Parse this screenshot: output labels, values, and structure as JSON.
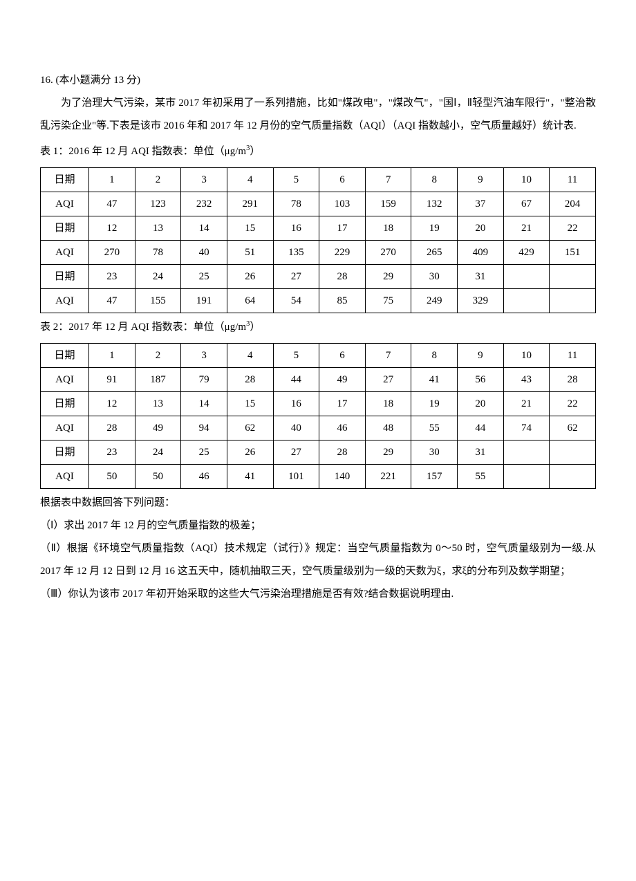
{
  "question_number": "16. (本小题满分 13 分)",
  "prose": {
    "p1": "为了治理大气污染，某市 2017 年初采用了一系列措施，比如\"煤改电\"，\"煤改气\"，\"国Ⅰ，Ⅱ轻型汽油车限行\"，\"整治散乱污染企业\"等.下表是该市 2016 年和 2017 年 12 月份的空气质量指数（AQI）（AQI 指数越小，空气质量越好）统计表."
  },
  "table1": {
    "title_prefix": "表 1：2016 年 12 月 AQI 指数表：单位（",
    "unit_html": "μg/m<sup>3</sup>",
    "title_suffix": "）",
    "row_labels": {
      "date": "日期",
      "aqi": "AQI"
    },
    "rows": [
      {
        "dates": [
          "1",
          "2",
          "3",
          "4",
          "5",
          "6",
          "7",
          "8",
          "9",
          "10",
          "11"
        ],
        "aqi": [
          "47",
          "123",
          "232",
          "291",
          "78",
          "103",
          "159",
          "132",
          "37",
          "67",
          "204"
        ]
      },
      {
        "dates": [
          "12",
          "13",
          "14",
          "15",
          "16",
          "17",
          "18",
          "19",
          "20",
          "21",
          "22"
        ],
        "aqi": [
          "270",
          "78",
          "40",
          "51",
          "135",
          "229",
          "270",
          "265",
          "409",
          "429",
          "151"
        ]
      },
      {
        "dates": [
          "23",
          "24",
          "25",
          "26",
          "27",
          "28",
          "29",
          "30",
          "31",
          "",
          ""
        ],
        "aqi": [
          "47",
          "155",
          "191",
          "64",
          "54",
          "85",
          "75",
          "249",
          "329",
          "",
          ""
        ]
      }
    ]
  },
  "table2": {
    "title_prefix": "表 2：2017 年 12 月 AQI 指数表：单位（",
    "unit_html": "μg/m<sup>3</sup>",
    "title_suffix": "）",
    "row_labels": {
      "date": "日期",
      "aqi": "AQI"
    },
    "rows": [
      {
        "dates": [
          "1",
          "2",
          "3",
          "4",
          "5",
          "6",
          "7",
          "8",
          "9",
          "10",
          "11"
        ],
        "aqi": [
          "91",
          "187",
          "79",
          "28",
          "44",
          "49",
          "27",
          "41",
          "56",
          "43",
          "28"
        ]
      },
      {
        "dates": [
          "12",
          "13",
          "14",
          "15",
          "16",
          "17",
          "18",
          "19",
          "20",
          "21",
          "22"
        ],
        "aqi": [
          "28",
          "49",
          "94",
          "62",
          "40",
          "46",
          "48",
          "55",
          "44",
          "74",
          "62"
        ]
      },
      {
        "dates": [
          "23",
          "24",
          "25",
          "26",
          "27",
          "28",
          "29",
          "30",
          "31",
          "",
          ""
        ],
        "aqi": [
          "50",
          "50",
          "46",
          "41",
          "101",
          "140",
          "221",
          "157",
          "55",
          "",
          ""
        ]
      }
    ]
  },
  "questions": {
    "lead": "根据表中数据回答下列问题：",
    "q1": "（Ⅰ）求出 2017 年 12 月的空气质量指数的极差；",
    "q2": "（Ⅱ）根据《环境空气质量指数（AQI）技术规定（试行）》规定：当空气质量指数为 0～50 时，空气质量级别为一级.从 2017 年 12 月 12 日到 12 月 16 这五天中，随机抽取三天，空气质量级别为一级的天数为ξ，求ξ的分布列及数学期望；",
    "q3": "（Ⅲ）你认为该市 2017 年初开始采取的这些大气污染治理措施是否有效?结合数据说明理由."
  },
  "style": {
    "font_size_pt": 15,
    "line_height": 2.2,
    "border_color": "#000000",
    "background": "#ffffff"
  }
}
